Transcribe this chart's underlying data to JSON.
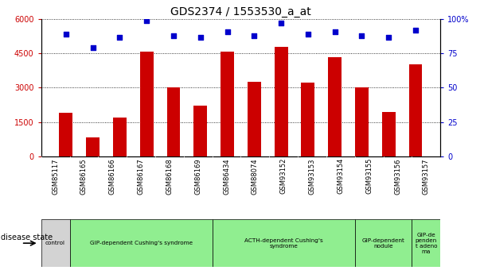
{
  "title": "GDS2374 / 1553530_a_at",
  "samples": [
    "GSM85117",
    "GSM86165",
    "GSM86166",
    "GSM86167",
    "GSM86168",
    "GSM86169",
    "GSM86434",
    "GSM88074",
    "GSM93152",
    "GSM93153",
    "GSM93154",
    "GSM93155",
    "GSM93156",
    "GSM93157"
  ],
  "counts": [
    1900,
    820,
    1680,
    4580,
    3000,
    2200,
    4580,
    3250,
    4780,
    3230,
    4350,
    3000,
    1920,
    4020
  ],
  "percentiles": [
    89,
    79,
    87,
    99,
    88,
    87,
    91,
    88,
    97,
    89,
    91,
    88,
    87,
    92
  ],
  "bar_color": "#cc0000",
  "dot_color": "#0000cc",
  "ylim_left": [
    0,
    6000
  ],
  "ylim_right": [
    0,
    100
  ],
  "yticks_left": [
    0,
    1500,
    3000,
    4500,
    6000
  ],
  "yticks_right": [
    0,
    25,
    50,
    75,
    100
  ],
  "disease_groups": [
    {
      "label": "control",
      "start": 0,
      "end": 1,
      "color": "#d3d3d3"
    },
    {
      "label": "GIP-dependent Cushing's syndrome",
      "start": 1,
      "end": 6,
      "color": "#90ee90"
    },
    {
      "label": "ACTH-dependent Cushing's\nsyndrome",
      "start": 6,
      "end": 11,
      "color": "#90ee90"
    },
    {
      "label": "GIP-dependent\nnodule",
      "start": 11,
      "end": 13,
      "color": "#90ee90"
    },
    {
      "label": "GIP-de\npenden\nt adeno\nma",
      "start": 13,
      "end": 14,
      "color": "#90ee90"
    }
  ],
  "bg_color": "#ffffff",
  "plot_bg": "#ffffff",
  "title_fontsize": 10,
  "tick_fontsize": 7,
  "label_fontsize": 7
}
